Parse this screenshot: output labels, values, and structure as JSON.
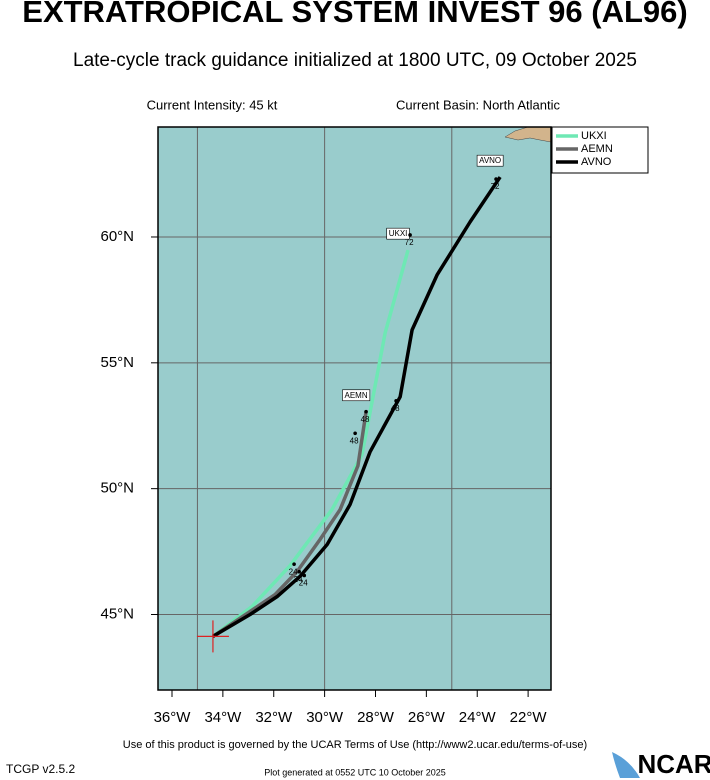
{
  "chart_data": {
    "type": "line",
    "title": "EXTRATROPICAL SYSTEM INVEST 96 (AL96)",
    "subtitle": "Late-cycle track guidance initialized at 1800 UTC, 09 October 2025",
    "intensity": "Current Intensity: 45 kt",
    "basin": "Current Basin: North Atlantic",
    "footer_terms": "Use of this product is governed by the UCAR Terms of Use (http://www2.ucar.edu/terms-of-use)",
    "footer_version": "TCGP v2.5.2",
    "footer_generated": "Plot generated at 0552 UTC   10 October 2025",
    "logo": "NCAR",
    "xlim": [
      -36.55,
      -21.1
    ],
    "ylim": [
      42.0,
      64.37
    ],
    "xticks": [
      {
        "value": -36,
        "label": "36°W"
      },
      {
        "value": -34,
        "label": "34°W"
      },
      {
        "value": -32,
        "label": "32°W"
      },
      {
        "value": -30,
        "label": "30°W"
      },
      {
        "value": -28,
        "label": "28°W"
      },
      {
        "value": -26,
        "label": "26°W"
      },
      {
        "value": -24,
        "label": "24°W"
      },
      {
        "value": -22,
        "label": "22°W"
      }
    ],
    "yticks": [
      {
        "value": 45,
        "label": "45°N"
      },
      {
        "value": 50,
        "label": "50°N"
      },
      {
        "value": 55,
        "label": "55°N"
      },
      {
        "value": 60,
        "label": "60°N"
      }
    ],
    "xgrid": [
      -35,
      -30,
      -25
    ],
    "grid": true,
    "legend": "top-right",
    "series": [
      {
        "name": "UKXI",
        "color": "#6ee8b4",
        "x": [
          -34.39,
          -32.85,
          -31.36,
          -29.71,
          -28.53,
          -27.62,
          -26.72
        ],
        "values": [
          44.13,
          45.32,
          46.94,
          49.17,
          51.35,
          56.19,
          59.48
        ]
      },
      {
        "name": "AEMN",
        "color": "#666666",
        "x": [
          -34.39,
          -32.93,
          -31.95,
          -31.08,
          -30.18,
          -29.39,
          -28.69,
          -28.37
        ],
        "values": [
          44.13,
          45.12,
          45.79,
          46.71,
          47.98,
          49.17,
          50.91,
          53.06
        ]
      },
      {
        "name": "AVNO",
        "color": "#000000",
        "x": [
          -34.39,
          -32.93,
          -31.87,
          -30.97,
          -29.9,
          -29.0,
          -28.21,
          -27.03,
          -26.56,
          -25.58,
          -24.28,
          -23.1
        ],
        "values": [
          44.13,
          45.0,
          45.71,
          46.51,
          47.78,
          49.37,
          51.47,
          53.65,
          56.31,
          58.49,
          60.6,
          62.38
        ]
      }
    ],
    "annotations": [
      {
        "text": "72",
        "lon": -26.64,
        "lat": 60.08
      },
      {
        "text": "48",
        "lon": -28.37,
        "lat": 53.06
      },
      {
        "text": "48",
        "lon": -28.8,
        "lat": 52.2
      },
      {
        "text": "48",
        "lon": -27.19,
        "lat": 53.49
      },
      {
        "text": "72",
        "lon": -23.26,
        "lat": 62.3
      },
      {
        "text": "24",
        "lon": -31.2,
        "lat": 47.0
      },
      {
        "text": "24",
        "lon": -31.0,
        "lat": 46.7
      },
      {
        "text": "24",
        "lon": -30.8,
        "lat": 46.55
      }
    ]
  }
}
